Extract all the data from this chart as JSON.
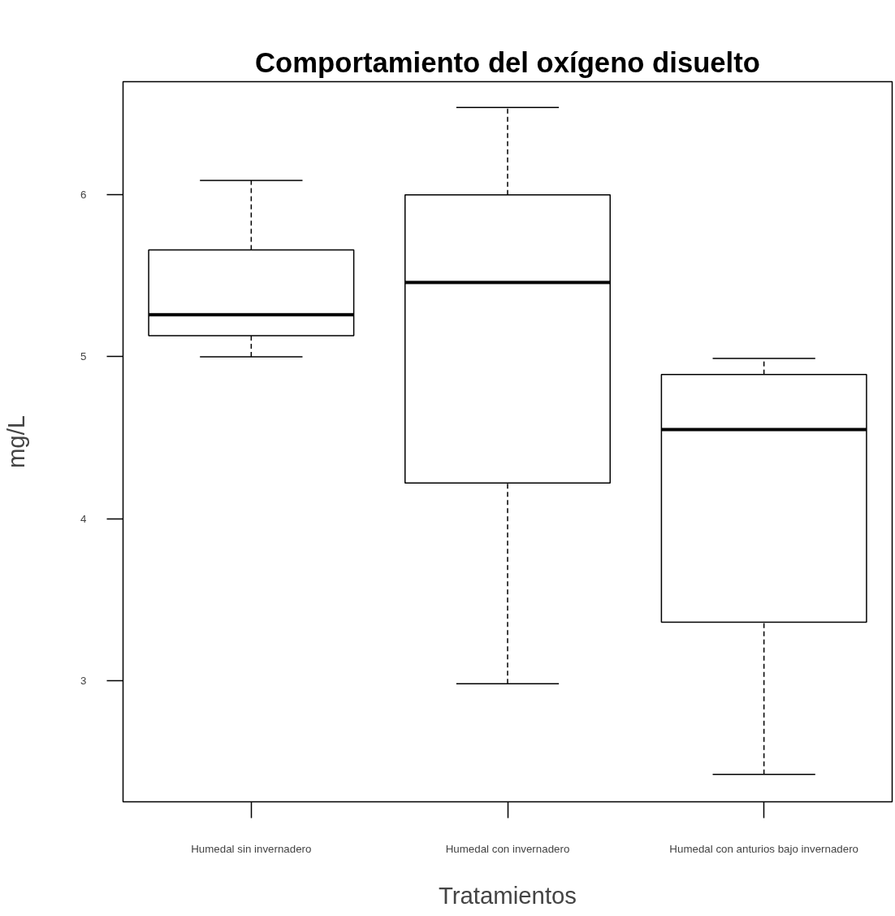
{
  "chart_data": {
    "type": "box",
    "title": "Comportamiento del oxígeno disuelto",
    "xlabel": "Tratamientos",
    "ylabel": "mg/L",
    "categories": [
      "Humedal sin invernadero",
      "Humedal con invernadero",
      "Humedal con anturios bajo invernadero"
    ],
    "boxes": [
      {
        "low": 5.0,
        "q1": 5.13,
        "median": 5.26,
        "q3": 5.66,
        "high": 6.09
      },
      {
        "low": 2.98,
        "q1": 4.22,
        "median": 5.46,
        "q3": 6.0,
        "high": 6.54
      },
      {
        "low": 2.42,
        "q1": 3.36,
        "median": 4.55,
        "q3": 4.89,
        "high": 4.99
      }
    ],
    "ylim": [
      2.25,
      6.7
    ],
    "yticks": [
      3,
      4,
      5,
      6
    ],
    "grid": false
  }
}
